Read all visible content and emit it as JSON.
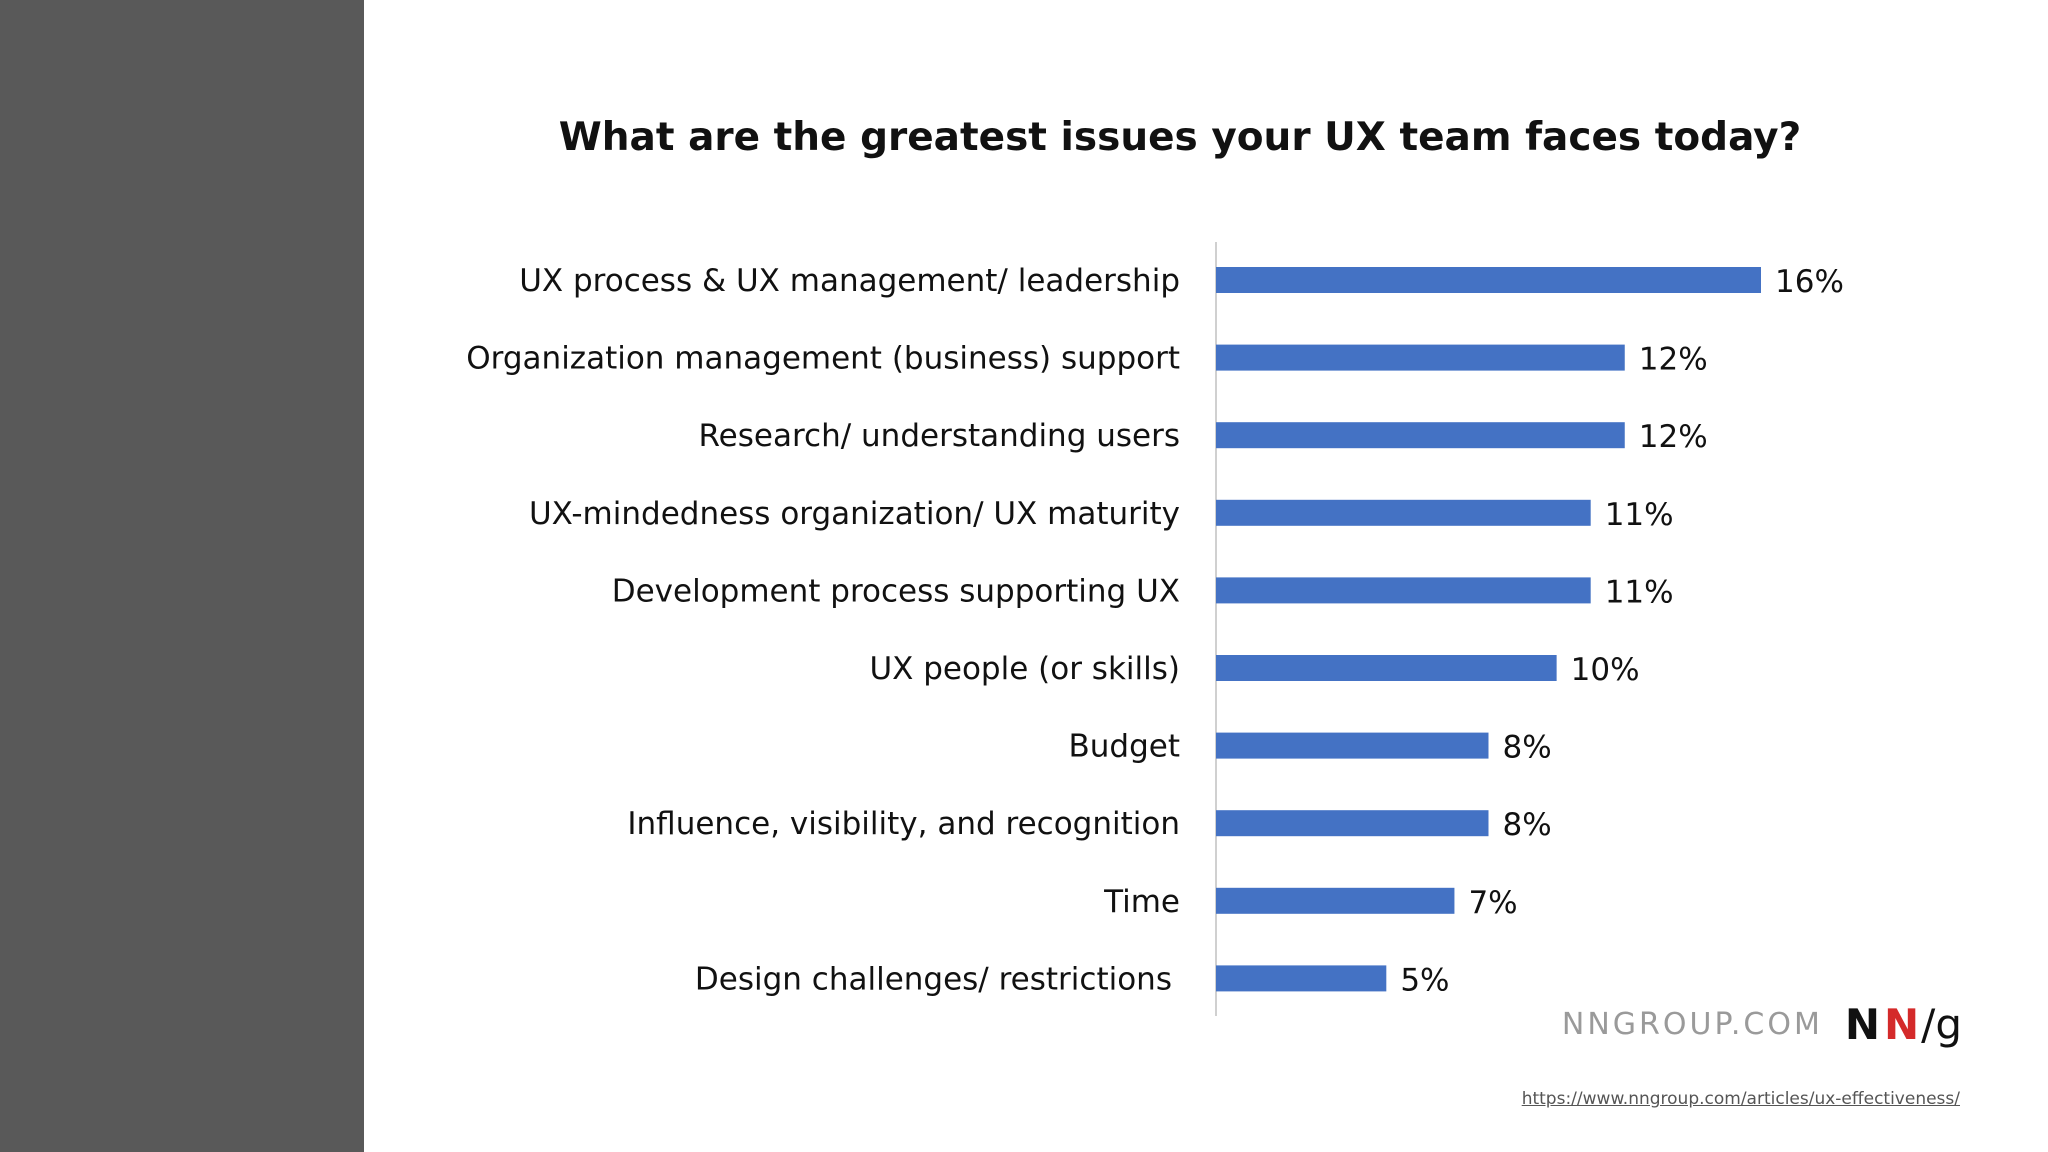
{
  "colors": {
    "sidebar": "#595959",
    "bar": "#4472c4",
    "axis": "#d0d0d0"
  },
  "chart_data": {
    "type": "bar",
    "orientation": "horizontal",
    "title": "What are the greatest issues your UX team faces today?",
    "categories": [
      "UX process & UX management/ leadership",
      "Organization management (business) support",
      "Research/ understanding users",
      "UX-mindedness organization/ UX maturity",
      "Development process supporting UX",
      "UX people (or skills)",
      "Budget",
      "Influence, visibility, and recognition",
      "Time",
      "Design challenges/ restrictions"
    ],
    "values": [
      16,
      12,
      12,
      11,
      11,
      10,
      8,
      8,
      7,
      5
    ],
    "value_labels": [
      "16%",
      "12%",
      "12%",
      "11%",
      "11%",
      "10%",
      "8%",
      "8%",
      "7%",
      "5%"
    ],
    "unit": "%",
    "xlim": [
      0,
      16
    ],
    "grid": false,
    "legend": "none"
  },
  "branding": {
    "site": "NNGROUP.COM",
    "logo_n1": "N",
    "logo_n2": "N",
    "logo_slash": "/",
    "logo_g": "g"
  },
  "source": {
    "url_text": "https://www.nngroup.com/articles/ux-effectiveness/"
  }
}
